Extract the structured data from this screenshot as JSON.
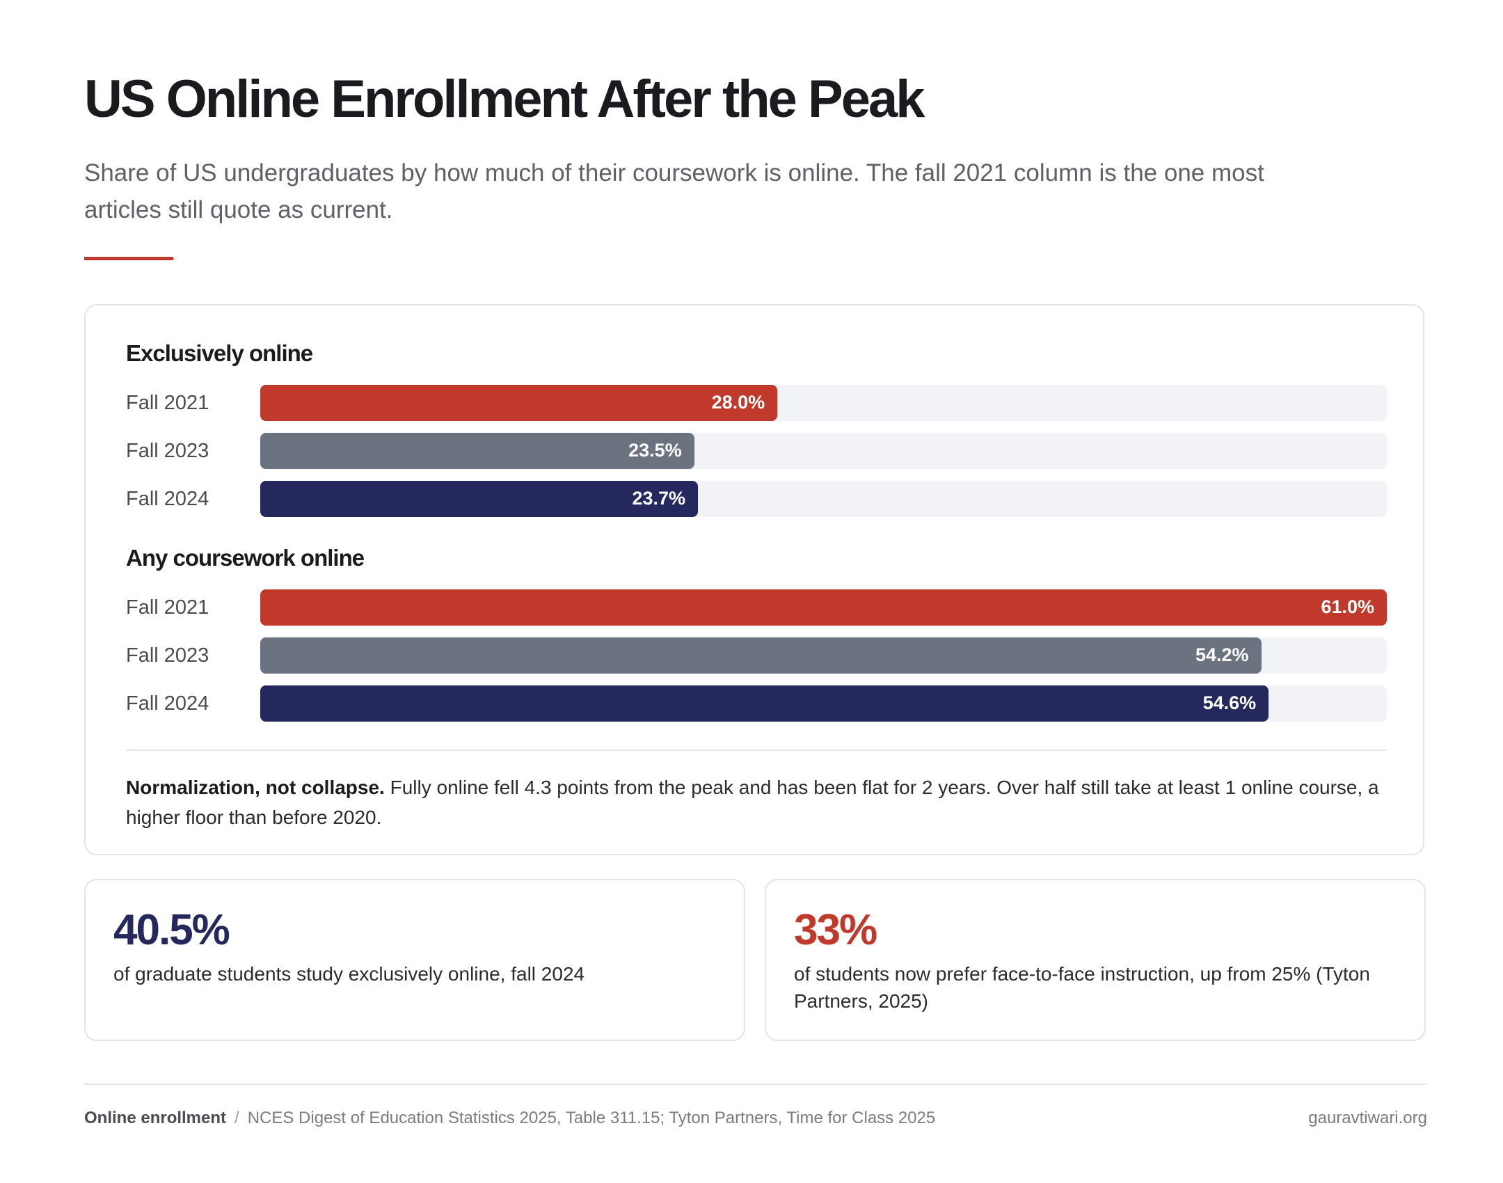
{
  "header": {
    "title": "US Online Enrollment After the Peak",
    "subtitle": "Share of US undergraduates by how much of their coursework is online. The fall 2021 column is the one most articles still quote as current.",
    "accent_color": "#c0392b"
  },
  "colors": {
    "fall_2021": "#c0392b",
    "fall_2023": "#6b7280",
    "fall_2024": "#24285c",
    "track": "#f2f3f6"
  },
  "chart_data": {
    "type": "bar",
    "orientation": "horizontal",
    "xlim": [
      0,
      61.0
    ],
    "value_suffix": "%",
    "groups": [
      {
        "name": "Exclusively online",
        "bars": [
          {
            "label": "Fall 2021",
            "value": 28.0,
            "display": "28.0%",
            "color": "#c0392b"
          },
          {
            "label": "Fall 2023",
            "value": 23.5,
            "display": "23.5%",
            "color": "#6b7280"
          },
          {
            "label": "Fall 2024",
            "value": 23.7,
            "display": "23.7%",
            "color": "#24285c"
          }
        ]
      },
      {
        "name": "Any coursework online",
        "bars": [
          {
            "label": "Fall 2021",
            "value": 61.0,
            "display": "61.0%",
            "color": "#c0392b"
          },
          {
            "label": "Fall 2023",
            "value": 54.2,
            "display": "54.2%",
            "color": "#6b7280"
          },
          {
            "label": "Fall 2024",
            "value": 54.6,
            "display": "54.6%",
            "color": "#24285c"
          }
        ]
      }
    ]
  },
  "note": {
    "lead": "Normalization, not collapse.",
    "body": " Fully online fell 4.3 points from the peak and has been flat for 2 years. Over half still take at least 1 online course, a higher floor than before 2020."
  },
  "stats": [
    {
      "value": "40.5%",
      "text": "of graduate students study exclusively online, fall 2024",
      "color": "#24285c"
    },
    {
      "value": "33%",
      "text": "of students now prefer face-to-face instruction, up from 25% (Tyton Partners, 2025)",
      "color": "#c0392b"
    }
  ],
  "footer": {
    "topic": "Online enrollment",
    "separator": "/",
    "sources": "NCES Digest of Education Statistics 2025, Table 311.15; Tyton Partners, Time for Class 2025",
    "site": "gauravtiwari.org"
  }
}
